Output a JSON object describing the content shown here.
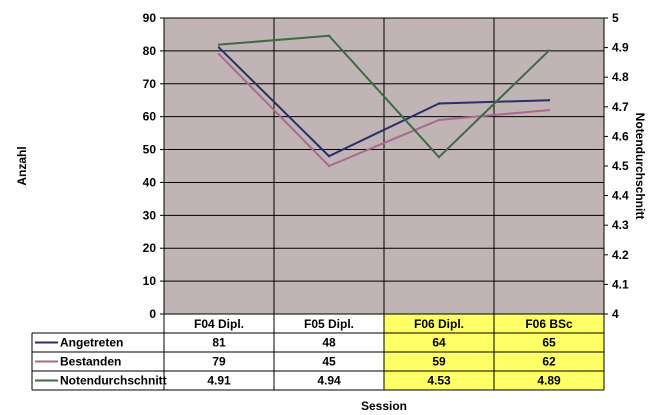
{
  "chart_data": {
    "type": "line",
    "xlabel": "Session",
    "ylabel_left": "Anzahl",
    "ylabel_right": "Notendurchschnitt",
    "categories": [
      "F04 Dipl.",
      "F05 Dipl.",
      "F06 Dipl.",
      "F06 BSc"
    ],
    "highlighted_categories": [
      "F06 Dipl.",
      "F06 BSc"
    ],
    "highlight_color": "#ffff66",
    "plot_background": "#c0b4b4",
    "grid": true,
    "y_left": {
      "min": 0,
      "max": 90,
      "step": 10,
      "ticks": [
        "0",
        "10",
        "20",
        "30",
        "40",
        "50",
        "60",
        "70",
        "80",
        "90"
      ]
    },
    "y_right": {
      "min": 4,
      "max": 5,
      "step": 0.1,
      "ticks": [
        "4",
        "4.1",
        "4.2",
        "4.3",
        "4.4",
        "4.5",
        "4.6",
        "4.7",
        "4.8",
        "4.9",
        "5"
      ]
    },
    "legend": "data-table",
    "series": [
      {
        "name": "Angetreten",
        "axis": "left",
        "color": "#2a2e6a",
        "values": [
          81,
          48,
          64,
          65
        ],
        "labels": [
          "81",
          "48",
          "64",
          "65"
        ]
      },
      {
        "name": "Bestanden",
        "axis": "left",
        "color": "#a86a8e",
        "values": [
          79,
          45,
          59,
          62
        ],
        "labels": [
          "79",
          "45",
          "59",
          "62"
        ]
      },
      {
        "name": "Notendurchschnitt",
        "axis": "right",
        "color": "#3e6a46",
        "values": [
          4.91,
          4.94,
          4.53,
          4.89
        ],
        "labels": [
          "4.91",
          "4.94",
          "4.53",
          "4.89"
        ]
      }
    ]
  }
}
